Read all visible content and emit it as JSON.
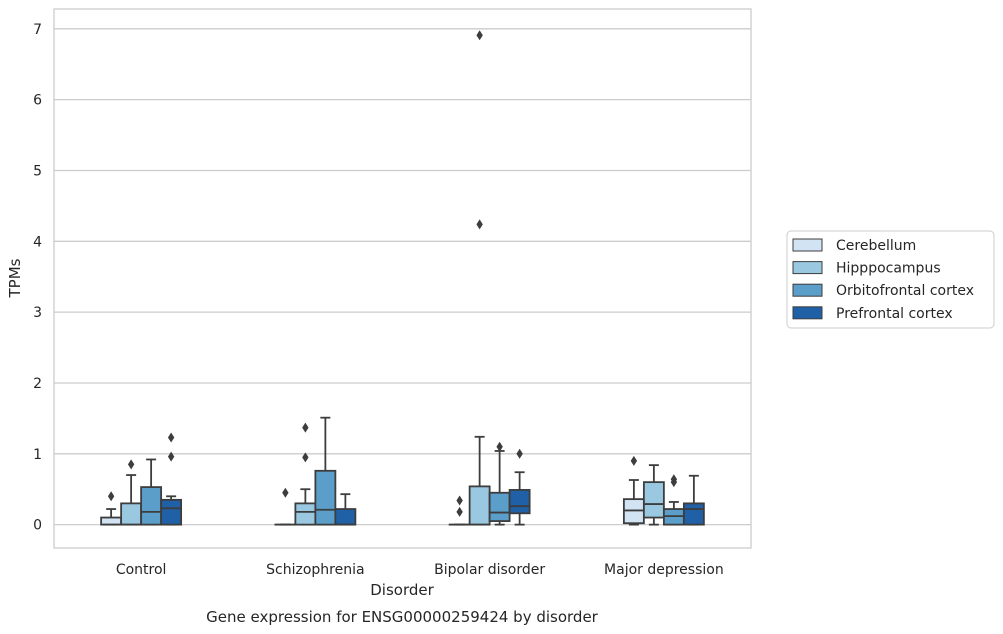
{
  "chart_data": {
    "type": "box",
    "xlabel": "Disorder",
    "ylabel": "TPMs",
    "caption": "Gene expression for ENSG00000259424 by disorder",
    "ylim": [
      -0.33,
      7.28
    ],
    "y_ticks": [
      0,
      1,
      2,
      3,
      4,
      5,
      6,
      7
    ],
    "grid": true,
    "legend_position": "right",
    "categories": [
      "Control",
      "Schizophrenia",
      "Bipolar disorder",
      "Major depression"
    ],
    "series": [
      {
        "name": "Cerebellum",
        "color": "#d2e3f3",
        "boxes": [
          {
            "min": 0,
            "q1": 0,
            "median": 0,
            "q3": 0.1,
            "max": 0.22,
            "outliers": [
              0.4
            ]
          },
          {
            "min": 0,
            "q1": 0,
            "median": 0,
            "q3": 0,
            "max": 0,
            "outliers": [
              0.45
            ]
          },
          {
            "min": 0,
            "q1": 0,
            "median": 0,
            "q3": 0,
            "max": 0,
            "outliers": [
              0.34,
              0.18
            ]
          },
          {
            "min": 0,
            "q1": 0.02,
            "median": 0.2,
            "q3": 0.36,
            "max": 0.63,
            "outliers": [
              0.9
            ]
          }
        ]
      },
      {
        "name": "Hipppocampus",
        "color": "#9ac8e0",
        "boxes": [
          {
            "min": 0,
            "q1": 0,
            "median": 0,
            "q3": 0.3,
            "max": 0.7,
            "outliers": [
              0.85
            ]
          },
          {
            "min": 0,
            "q1": 0,
            "median": 0.18,
            "q3": 0.3,
            "max": 0.5,
            "outliers": [
              1.37,
              0.95
            ]
          },
          {
            "min": 0,
            "q1": 0,
            "median": 0,
            "q3": 0.54,
            "max": 1.24,
            "outliers": [
              4.24,
              6.91
            ]
          },
          {
            "min": 0,
            "q1": 0.1,
            "median": 0.29,
            "q3": 0.6,
            "max": 0.84,
            "outliers": []
          }
        ]
      },
      {
        "name": "Orbitofrontal cortex",
        "color": "#5a9ec9",
        "boxes": [
          {
            "min": 0,
            "q1": 0,
            "median": 0.18,
            "q3": 0.53,
            "max": 0.92,
            "outliers": []
          },
          {
            "min": 0,
            "q1": 0,
            "median": 0.21,
            "q3": 0.76,
            "max": 1.51,
            "outliers": []
          },
          {
            "min": 0,
            "q1": 0.05,
            "median": 0.17,
            "q3": 0.45,
            "max": 1.04,
            "outliers": [
              1.1
            ]
          },
          {
            "min": 0,
            "q1": 0,
            "median": 0.12,
            "q3": 0.22,
            "max": 0.32,
            "outliers": [
              0.64,
              0.6
            ]
          }
        ]
      },
      {
        "name": "Prefrontal cortex",
        "color": "#2060a7",
        "boxes": [
          {
            "min": 0,
            "q1": 0,
            "median": 0.23,
            "q3": 0.35,
            "max": 0.4,
            "outliers": [
              1.23,
              0.96
            ]
          },
          {
            "min": 0,
            "q1": 0,
            "median": 0,
            "q3": 0.22,
            "max": 0.43,
            "outliers": []
          },
          {
            "min": 0,
            "q1": 0.16,
            "median": 0.26,
            "q3": 0.49,
            "max": 0.74,
            "outliers": [
              1
            ]
          },
          {
            "min": 0,
            "q1": 0,
            "median": 0.22,
            "q3": 0.3,
            "max": 0.69,
            "outliers": []
          }
        ]
      }
    ]
  }
}
